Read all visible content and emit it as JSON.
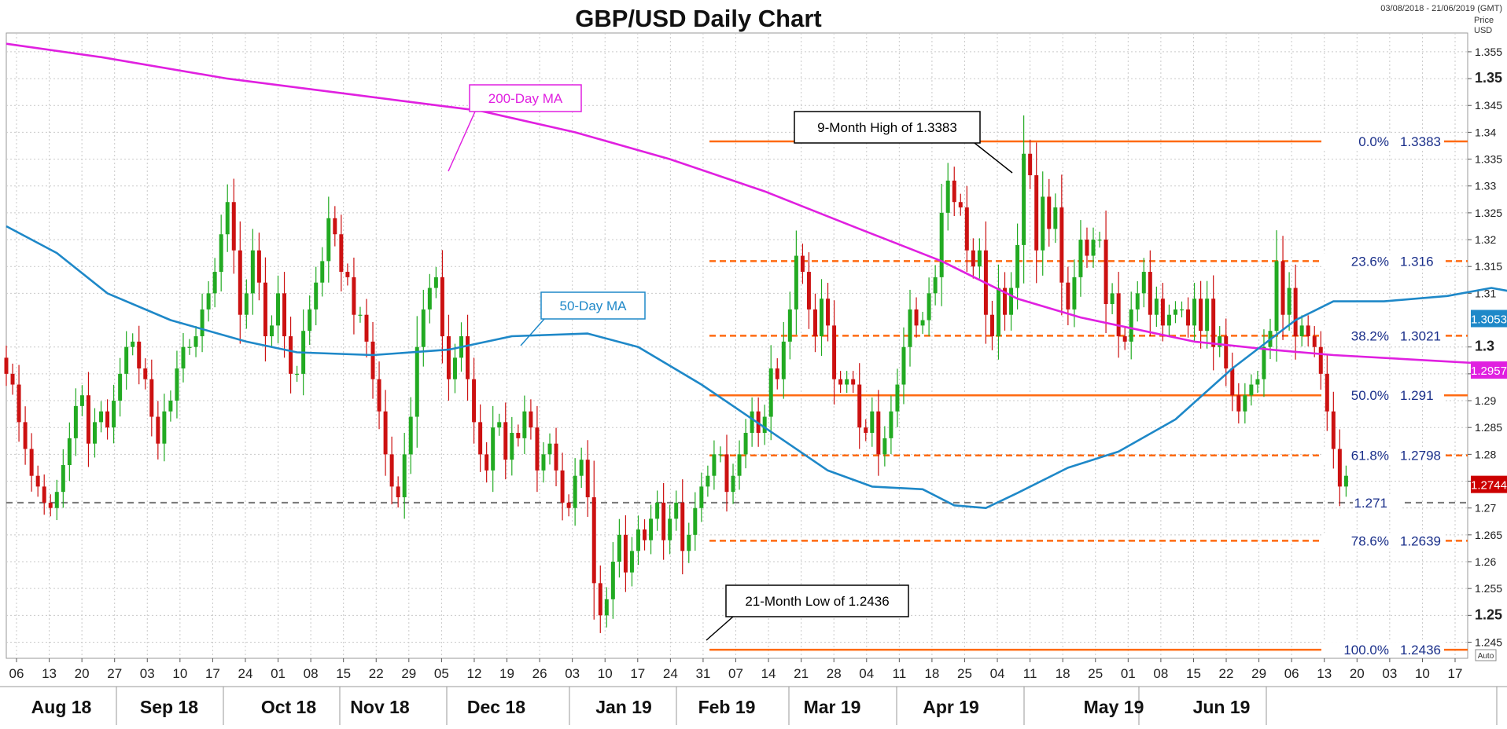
{
  "chart_data": {
    "type": "candlestick",
    "title": "GBP/USD Daily Chart",
    "date_range": "03/08/2018 - 21/06/2019 (GMT)",
    "price_label": "Price",
    "currency_label": "USD",
    "auto_label": "Auto",
    "ylim": [
      1.242,
      1.3585
    ],
    "grid": true,
    "y_ticks": [
      {
        "v": 1.355,
        "t": "1.355",
        "bold": false
      },
      {
        "v": 1.35,
        "t": "1.35",
        "bold": true
      },
      {
        "v": 1.345,
        "t": "1.345",
        "bold": false
      },
      {
        "v": 1.34,
        "t": "1.34",
        "bold": false
      },
      {
        "v": 1.335,
        "t": "1.335",
        "bold": false
      },
      {
        "v": 1.33,
        "t": "1.33",
        "bold": false
      },
      {
        "v": 1.325,
        "t": "1.325",
        "bold": false
      },
      {
        "v": 1.32,
        "t": "1.32",
        "bold": false
      },
      {
        "v": 1.315,
        "t": "1.315",
        "bold": false
      },
      {
        "v": 1.31,
        "t": "1.31",
        "bold": false
      },
      {
        "v": 1.3,
        "t": "1.3",
        "bold": true
      },
      {
        "v": 1.295,
        "t": "1.295",
        "bold": false
      },
      {
        "v": 1.29,
        "t": "1.29",
        "bold": false
      },
      {
        "v": 1.285,
        "t": "1.285",
        "bold": false
      },
      {
        "v": 1.28,
        "t": "1.28",
        "bold": false
      },
      {
        "v": 1.275,
        "t": "1.275",
        "bold": false
      },
      {
        "v": 1.27,
        "t": "1.27",
        "bold": false
      },
      {
        "v": 1.265,
        "t": "1.265",
        "bold": false
      },
      {
        "v": 1.26,
        "t": "1.26",
        "bold": false
      },
      {
        "v": 1.255,
        "t": "1.255",
        "bold": false
      },
      {
        "v": 1.25,
        "t": "1.25",
        "bold": true
      },
      {
        "v": 1.245,
        "t": "1.245",
        "bold": false
      }
    ],
    "x_ticks": [
      "06",
      "13",
      "20",
      "27",
      "03",
      "10",
      "17",
      "24",
      "01",
      "08",
      "15",
      "22",
      "29",
      "05",
      "12",
      "19",
      "26",
      "03",
      "10",
      "17",
      "24",
      "31",
      "07",
      "14",
      "21",
      "28",
      "04",
      "11",
      "18",
      "25",
      "04",
      "11",
      "18",
      "25",
      "01",
      "08",
      "15",
      "22",
      "29",
      "06",
      "13",
      "20",
      "03",
      "10",
      "17"
    ],
    "months": [
      "Aug 18",
      "Sep 18",
      "Oct 18",
      "Nov 18",
      "Dec 18",
      "Jan 19",
      "Feb 19",
      "Mar 19",
      "Apr 19",
      "May 19",
      "Jun 19"
    ],
    "price_tags": [
      {
        "value": 1.3053,
        "text": "1.3053",
        "color": "#1e88c8"
      },
      {
        "value": 1.2957,
        "text": "1.2957",
        "color": "#e020e0"
      },
      {
        "value": 1.2744,
        "text": "1.2744",
        "color": "#cc0000"
      }
    ],
    "fib_levels": [
      {
        "label": "0.0%",
        "value": 1.3383,
        "text": "1.3383",
        "style": "solid"
      },
      {
        "label": "23.6%",
        "value": 1.316,
        "text": "1.316",
        "style": "dashed"
      },
      {
        "label": "38.2%",
        "value": 1.3021,
        "text": "1.3021",
        "style": "dashed"
      },
      {
        "label": "50.0%",
        "value": 1.291,
        "text": "1.291",
        "style": "solid"
      },
      {
        "label": "61.8%",
        "value": 1.2798,
        "text": "1.2798",
        "style": "dashed"
      },
      {
        "label": "78.6%",
        "value": 1.2639,
        "text": "1.2639",
        "style": "dashed"
      },
      {
        "label": "100.0%",
        "value": 1.2436,
        "text": "1.2436",
        "style": "solid"
      }
    ],
    "support_line": {
      "value": 1.271,
      "text": "1.271"
    },
    "annotations": [
      {
        "text": "200-Day MA",
        "color": "#e020e0"
      },
      {
        "text": "50-Day MA",
        "color": "#1e88c8"
      },
      {
        "text": "9-Month High of 1.3383",
        "color": "#000000"
      },
      {
        "text": "21-Month Low of 1.2436",
        "color": "#000000"
      }
    ],
    "colors": {
      "bull": "#22aa22",
      "bear": "#cc1111",
      "fib": "#ff6a10",
      "ma200": "#e020e0",
      "ma50": "#1e88c8",
      "grid": "#c9c9c9"
    },
    "ma200_points": [
      [
        0,
        1.3565
      ],
      [
        15,
        1.354
      ],
      [
        35,
        1.35
      ],
      [
        55,
        1.347
      ],
      [
        75,
        1.344
      ],
      [
        90,
        1.34
      ],
      [
        105,
        1.335
      ],
      [
        120,
        1.329
      ],
      [
        135,
        1.322
      ],
      [
        148,
        1.316
      ],
      [
        160,
        1.309
      ],
      [
        170,
        1.3055
      ],
      [
        178,
        1.3035
      ],
      [
        188,
        1.301
      ],
      [
        200,
        1.2995
      ],
      [
        210,
        1.2985
      ],
      [
        225,
        1.2975
      ],
      [
        240,
        1.2965
      ],
      [
        250,
        1.296
      ],
      [
        255,
        1.2958
      ]
    ],
    "ma50_points": [
      [
        0,
        1.3225
      ],
      [
        8,
        1.3175
      ],
      [
        16,
        1.31
      ],
      [
        26,
        1.305
      ],
      [
        38,
        1.301
      ],
      [
        46,
        1.299
      ],
      [
        58,
        1.2985
      ],
      [
        70,
        1.2995
      ],
      [
        80,
        1.302
      ],
      [
        92,
        1.3025
      ],
      [
        100,
        1.3
      ],
      [
        110,
        1.293
      ],
      [
        120,
        1.285
      ],
      [
        130,
        1.277
      ],
      [
        137,
        1.274
      ],
      [
        145,
        1.2735
      ],
      [
        150,
        1.2705
      ],
      [
        155,
        1.27
      ],
      [
        160,
        1.2728
      ],
      [
        168,
        1.2775
      ],
      [
        176,
        1.2805
      ],
      [
        185,
        1.2865
      ],
      [
        194,
        1.296
      ],
      [
        204,
        1.305
      ],
      [
        210,
        1.3085
      ],
      [
        218,
        1.3085
      ],
      [
        228,
        1.3095
      ],
      [
        235,
        1.311
      ],
      [
        242,
        1.3095
      ],
      [
        248,
        1.3075
      ],
      [
        253,
        1.3053
      ]
    ],
    "candles": [
      [
        1.298,
        1.295
      ],
      [
        1.295,
        1.293
      ],
      [
        1.293,
        1.286
      ],
      [
        1.286,
        1.281
      ],
      [
        1.281,
        1.276
      ],
      [
        1.276,
        1.274
      ],
      [
        1.274,
        1.271
      ],
      [
        1.271,
        1.27
      ],
      [
        1.27,
        1.273
      ],
      [
        1.273,
        1.278
      ],
      [
        1.278,
        1.283
      ],
      [
        1.283,
        1.289
      ],
      [
        1.289,
        1.291
      ],
      [
        1.291,
        1.282
      ],
      [
        1.282,
        1.286
      ],
      [
        1.286,
        1.288
      ],
      [
        1.288,
        1.285
      ],
      [
        1.285,
        1.29
      ],
      [
        1.29,
        1.295
      ],
      [
        1.295,
        1.3
      ],
      [
        1.3,
        1.301
      ],
      [
        1.301,
        1.296
      ],
      [
        1.296,
        1.294
      ],
      [
        1.294,
        1.287
      ],
      [
        1.287,
        1.282
      ],
      [
        1.282,
        1.288
      ],
      [
        1.288,
        1.29
      ],
      [
        1.29,
        1.296
      ],
      [
        1.296,
        1.3
      ],
      [
        1.3,
        1.3
      ],
      [
        1.3,
        1.302
      ],
      [
        1.302,
        1.307
      ],
      [
        1.307,
        1.31
      ],
      [
        1.31,
        1.314
      ],
      [
        1.314,
        1.321
      ],
      [
        1.321,
        1.327
      ],
      [
        1.327,
        1.318
      ],
      [
        1.318,
        1.306
      ],
      [
        1.306,
        1.31
      ],
      [
        1.31,
        1.318
      ],
      [
        1.318,
        1.312
      ],
      [
        1.312,
        1.302
      ],
      [
        1.302,
        1.304
      ],
      [
        1.304,
        1.31
      ],
      [
        1.31,
        1.302
      ],
      [
        1.302,
        1.295
      ],
      [
        1.295,
        1.295
      ],
      [
        1.295,
        1.303
      ],
      [
        1.303,
        1.307
      ],
      [
        1.307,
        1.312
      ],
      [
        1.312,
        1.316
      ],
      [
        1.316,
        1.324
      ],
      [
        1.324,
        1.321
      ],
      [
        1.321,
        1.314
      ],
      [
        1.314,
        1.313
      ],
      [
        1.313,
        1.306
      ],
      [
        1.306,
        1.306
      ],
      [
        1.306,
        1.301
      ],
      [
        1.301,
        1.294
      ],
      [
        1.294,
        1.288
      ],
      [
        1.288,
        1.28
      ],
      [
        1.28,
        1.274
      ],
      [
        1.274,
        1.272
      ],
      [
        1.272,
        1.28
      ],
      [
        1.28,
        1.287
      ],
      [
        1.287,
        1.3
      ],
      [
        1.3,
        1.307
      ],
      [
        1.307,
        1.311
      ],
      [
        1.311,
        1.313
      ],
      [
        1.313,
        1.302
      ],
      [
        1.302,
        1.294
      ],
      [
        1.294,
        1.298
      ],
      [
        1.298,
        1.302
      ],
      [
        1.302,
        1.294
      ],
      [
        1.294,
        1.286
      ],
      [
        1.286,
        1.28
      ],
      [
        1.28,
        1.277
      ],
      [
        1.277,
        1.285
      ],
      [
        1.285,
        1.286
      ],
      [
        1.286,
        1.279
      ],
      [
        1.279,
        1.284
      ],
      [
        1.284,
        1.283
      ],
      [
        1.283,
        1.288
      ],
      [
        1.288,
        1.285
      ],
      [
        1.285,
        1.277
      ],
      [
        1.277,
        1.28
      ],
      [
        1.28,
        1.282
      ],
      [
        1.282,
        1.277
      ],
      [
        1.277,
        1.271
      ],
      [
        1.271,
        1.27
      ],
      [
        1.27,
        1.276
      ],
      [
        1.276,
        1.279
      ],
      [
        1.279,
        1.272
      ],
      [
        1.272,
        1.256
      ],
      [
        1.256,
        1.25
      ],
      [
        1.25,
        1.253
      ],
      [
        1.253,
        1.26
      ],
      [
        1.26,
        1.265
      ],
      [
        1.265,
        1.258
      ],
      [
        1.258,
        1.262
      ],
      [
        1.262,
        1.266
      ],
      [
        1.266,
        1.264
      ],
      [
        1.264,
        1.268
      ],
      [
        1.268,
        1.271
      ],
      [
        1.271,
        1.264
      ],
      [
        1.264,
        1.268
      ],
      [
        1.268,
        1.271
      ],
      [
        1.271,
        1.262
      ],
      [
        1.262,
        1.265
      ],
      [
        1.265,
        1.27
      ],
      [
        1.27,
        1.274
      ],
      [
        1.274,
        1.276
      ],
      [
        1.276,
        1.28
      ],
      [
        1.28,
        1.28
      ],
      [
        1.28,
        1.273
      ],
      [
        1.273,
        1.276
      ],
      [
        1.276,
        1.28
      ],
      [
        1.28,
        1.284
      ],
      [
        1.284,
        1.288
      ],
      [
        1.288,
        1.284
      ],
      [
        1.284,
        1.287
      ],
      [
        1.287,
        1.296
      ],
      [
        1.296,
        1.294
      ],
      [
        1.294,
        1.301
      ],
      [
        1.301,
        1.307
      ],
      [
        1.307,
        1.317
      ],
      [
        1.317,
        1.314
      ],
      [
        1.314,
        1.307
      ],
      [
        1.307,
        1.302
      ],
      [
        1.302,
        1.309
      ],
      [
        1.309,
        1.304
      ],
      [
        1.304,
        1.294
      ],
      [
        1.294,
        1.293
      ],
      [
        1.293,
        1.294
      ],
      [
        1.294,
        1.293
      ],
      [
        1.293,
        1.285
      ],
      [
        1.285,
        1.284
      ],
      [
        1.284,
        1.288
      ],
      [
        1.288,
        1.28
      ],
      [
        1.28,
        1.283
      ],
      [
        1.283,
        1.288
      ],
      [
        1.288,
        1.293
      ],
      [
        1.293,
        1.3
      ],
      [
        1.3,
        1.307
      ],
      [
        1.307,
        1.304
      ],
      [
        1.304,
        1.305
      ],
      [
        1.305,
        1.31
      ],
      [
        1.31,
        1.313
      ],
      [
        1.313,
        1.325
      ],
      [
        1.325,
        1.331
      ],
      [
        1.331,
        1.327
      ],
      [
        1.327,
        1.326
      ],
      [
        1.326,
        1.318
      ],
      [
        1.318,
        1.315
      ],
      [
        1.315,
        1.318
      ],
      [
        1.318,
        1.306
      ],
      [
        1.306,
        1.302
      ],
      [
        1.302,
        1.311
      ],
      [
        1.311,
        1.306
      ],
      [
        1.306,
        1.311
      ],
      [
        1.311,
        1.319
      ],
      [
        1.319,
        1.336
      ],
      [
        1.336,
        1.332
      ],
      [
        1.332,
        1.318
      ],
      [
        1.318,
        1.328
      ],
      [
        1.328,
        1.322
      ],
      [
        1.322,
        1.326
      ],
      [
        1.326,
        1.312
      ],
      [
        1.312,
        1.307
      ],
      [
        1.307,
        1.313
      ],
      [
        1.313,
        1.32
      ],
      [
        1.32,
        1.317
      ],
      [
        1.317,
        1.32
      ],
      [
        1.32,
        1.32
      ],
      [
        1.32,
        1.308
      ],
      [
        1.308,
        1.31
      ],
      [
        1.31,
        1.302
      ],
      [
        1.302,
        1.301
      ],
      [
        1.301,
        1.307
      ],
      [
        1.307,
        1.31
      ],
      [
        1.31,
        1.314
      ],
      [
        1.314,
        1.306
      ],
      [
        1.306,
        1.309
      ],
      [
        1.309,
        1.304
      ],
      [
        1.304,
        1.306
      ],
      [
        1.306,
        1.307
      ],
      [
        1.307,
        1.307
      ],
      [
        1.307,
        1.304
      ],
      [
        1.304,
        1.309
      ],
      [
        1.309,
        1.303
      ],
      [
        1.303,
        1.309
      ],
      [
        1.309,
        1.3
      ],
      [
        1.3,
        1.302
      ],
      [
        1.302,
        1.296
      ],
      [
        1.296,
        1.291
      ],
      [
        1.291,
        1.288
      ],
      [
        1.288,
        1.291
      ],
      [
        1.291,
        1.293
      ],
      [
        1.293,
        1.294
      ],
      [
        1.294,
        1.3
      ],
      [
        1.3,
        1.303
      ],
      [
        1.303,
        1.316
      ],
      [
        1.316,
        1.306
      ],
      [
        1.306,
        1.311
      ],
      [
        1.311,
        1.302
      ],
      [
        1.302,
        1.304
      ],
      [
        1.304,
        1.302
      ],
      [
        1.302,
        1.3
      ],
      [
        1.3,
        1.295
      ],
      [
        1.295,
        1.288
      ],
      [
        1.288,
        1.281
      ],
      [
        1.281,
        1.274
      ],
      [
        1.274,
        1.276
      ]
    ]
  }
}
